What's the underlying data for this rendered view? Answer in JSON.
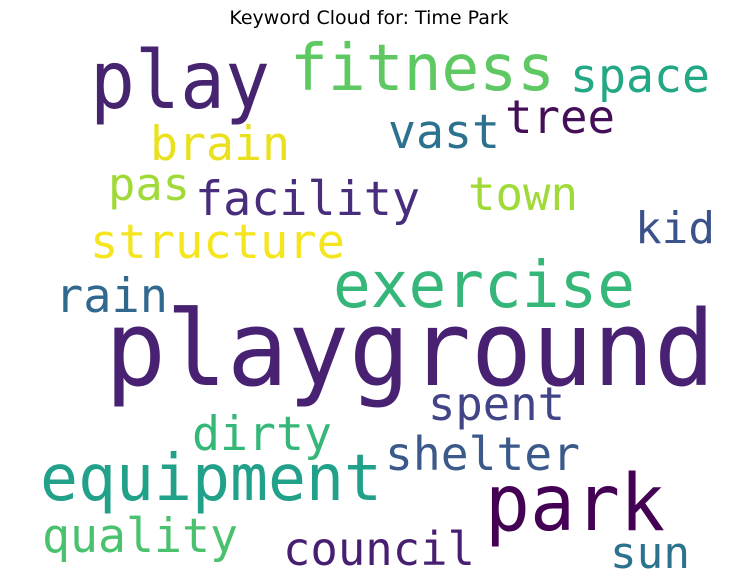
{
  "chart_data": {
    "type": "wordcloud",
    "title": "Keyword Cloud for: Time Park",
    "words": [
      {
        "text": "play",
        "color": "#46246f"
      },
      {
        "text": "fitness",
        "color": "#5ec962"
      },
      {
        "text": "space",
        "color": "#22a884"
      },
      {
        "text": "tree",
        "color": "#440f56"
      },
      {
        "text": "vast",
        "color": "#2c728e"
      },
      {
        "text": "brain",
        "color": "#eae01e"
      },
      {
        "text": "pas",
        "color": "#a0da39"
      },
      {
        "text": "facility",
        "color": "#472d7b"
      },
      {
        "text": "town",
        "color": "#a0da39"
      },
      {
        "text": "kid",
        "color": "#3b528b"
      },
      {
        "text": "structure",
        "color": "#f4e51e"
      },
      {
        "text": "exercise",
        "color": "#35b779"
      },
      {
        "text": "rain",
        "color": "#31688e"
      },
      {
        "text": "playground",
        "color": "#482173"
      },
      {
        "text": "spent",
        "color": "#414487"
      },
      {
        "text": "dirty",
        "color": "#35b779"
      },
      {
        "text": "shelter",
        "color": "#3b5a8b"
      },
      {
        "text": "equipment",
        "color": "#21a08a"
      },
      {
        "text": "park",
        "color": "#440154"
      },
      {
        "text": "quality",
        "color": "#4ac16d"
      },
      {
        "text": "council",
        "color": "#481f70"
      },
      {
        "text": "sun",
        "color": "#2c728e"
      }
    ]
  }
}
